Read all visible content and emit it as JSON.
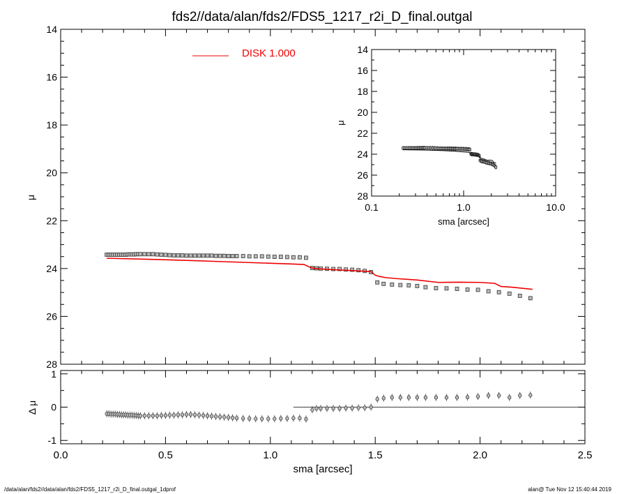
{
  "chart_data": {
    "type": "scatter",
    "title": "fds2//data/alan/fds2/FDS5_1217_r2i_D_final.outgal",
    "legend": {
      "label": "DISK  1.000",
      "color": "#ee0000",
      "placement": "top-left"
    },
    "main": {
      "ylabel": "μ",
      "ylim": [
        28,
        14
      ],
      "yticks": [
        "14",
        "16",
        "18",
        "20",
        "22",
        "24",
        "26",
        "28"
      ],
      "xlim": [
        0.0,
        2.5
      ],
      "data_points": {
        "x": [
          0.22,
          0.23,
          0.24,
          0.25,
          0.26,
          0.27,
          0.28,
          0.29,
          0.3,
          0.31,
          0.32,
          0.33,
          0.34,
          0.35,
          0.36,
          0.37,
          0.38,
          0.4,
          0.42,
          0.44,
          0.46,
          0.48,
          0.5,
          0.52,
          0.54,
          0.56,
          0.58,
          0.6,
          0.62,
          0.64,
          0.66,
          0.68,
          0.7,
          0.72,
          0.74,
          0.76,
          0.78,
          0.8,
          0.82,
          0.84,
          0.87,
          0.9,
          0.93,
          0.96,
          0.99,
          1.02,
          1.05,
          1.08,
          1.11,
          1.14,
          1.17,
          1.2,
          1.22,
          1.24,
          1.27,
          1.3,
          1.33,
          1.36,
          1.39,
          1.42,
          1.45,
          1.48,
          1.51,
          1.54,
          1.58,
          1.62,
          1.66,
          1.7,
          1.74,
          1.79,
          1.84,
          1.89,
          1.94,
          1.99,
          2.04,
          2.09,
          2.14,
          2.19,
          2.24
        ],
        "y": [
          23.42,
          23.42,
          23.42,
          23.42,
          23.42,
          23.42,
          23.42,
          23.42,
          23.42,
          23.42,
          23.41,
          23.41,
          23.41,
          23.41,
          23.4,
          23.4,
          23.4,
          23.4,
          23.4,
          23.4,
          23.41,
          23.42,
          23.43,
          23.44,
          23.45,
          23.45,
          23.45,
          23.46,
          23.46,
          23.46,
          23.46,
          23.46,
          23.46,
          23.46,
          23.47,
          23.47,
          23.47,
          23.48,
          23.48,
          23.48,
          23.48,
          23.49,
          23.49,
          23.49,
          23.5,
          23.51,
          23.51,
          23.52,
          23.53,
          23.53,
          23.55,
          23.98,
          23.99,
          24.0,
          24.01,
          24.02,
          24.02,
          24.04,
          24.05,
          24.07,
          24.1,
          24.15,
          24.58,
          24.64,
          24.67,
          24.69,
          24.7,
          24.73,
          24.78,
          24.82,
          24.83,
          24.85,
          24.88,
          24.89,
          24.95,
          24.99,
          25.05,
          25.14,
          25.24
        ]
      },
      "disk_model": {
        "x": [
          0.22,
          0.4,
          0.6,
          0.8,
          1.0,
          1.1,
          1.16,
          1.19,
          1.21,
          1.3,
          1.4,
          1.48,
          1.5,
          1.52,
          1.55,
          1.6,
          1.7,
          1.8,
          1.9,
          2.0,
          2.07,
          2.1,
          2.15,
          2.25
        ],
        "y": [
          23.57,
          23.61,
          23.66,
          23.72,
          23.78,
          23.81,
          23.83,
          23.95,
          24.0,
          24.05,
          24.09,
          24.13,
          24.28,
          24.33,
          24.38,
          24.42,
          24.48,
          24.58,
          24.57,
          24.58,
          24.62,
          24.75,
          24.78,
          24.87
        ]
      }
    },
    "residuals": {
      "ylabel": "Δ μ",
      "ylim": [
        -1.1,
        1.1
      ],
      "yticks": [
        "1",
        "0",
        "-1"
      ],
      "zero_line_xrange": [
        1.11,
        2.5
      ],
      "y": [
        -0.2,
        -0.2,
        -0.21,
        -0.21,
        -0.21,
        -0.22,
        -0.22,
        -0.23,
        -0.23,
        -0.23,
        -0.24,
        -0.24,
        -0.24,
        -0.25,
        -0.25,
        -0.26,
        -0.26,
        -0.26,
        -0.26,
        -0.26,
        -0.26,
        -0.25,
        -0.25,
        -0.24,
        -0.24,
        -0.23,
        -0.23,
        -0.22,
        -0.22,
        -0.23,
        -0.24,
        -0.25,
        -0.26,
        -0.27,
        -0.28,
        -0.29,
        -0.3,
        -0.31,
        -0.32,
        -0.33,
        -0.34,
        -0.34,
        -0.35,
        -0.35,
        -0.35,
        -0.35,
        -0.34,
        -0.34,
        -0.33,
        -0.33,
        -0.36,
        -0.08,
        -0.04,
        -0.04,
        -0.04,
        -0.04,
        -0.04,
        -0.03,
        -0.03,
        -0.02,
        -0.02,
        0.0,
        0.24,
        0.27,
        0.29,
        0.29,
        0.29,
        0.29,
        0.29,
        0.29,
        0.29,
        0.29,
        0.3,
        0.32,
        0.35,
        0.35,
        0.29,
        0.35,
        0.36
      ]
    },
    "xlabel": "sma [arcsec]",
    "xticks": [
      "0.0",
      "0.5",
      "1.0",
      "1.5",
      "2.0",
      "2.5"
    ],
    "inset": {
      "xlabel": "sma [arcsec]",
      "ylabel": "μ",
      "xscale": "log",
      "xlim": [
        0.1,
        10.0
      ],
      "xticks": [
        "0.1",
        "1.0",
        "10.0"
      ],
      "ylim": [
        28,
        14
      ],
      "yticks": [
        "14",
        "16",
        "18",
        "20",
        "22",
        "24",
        "26",
        "28"
      ]
    }
  },
  "footer": {
    "left": "/data/alan/fds2//data/alan/fds2/FDS5_1217_r2i_D_final.outgal_1dprof",
    "right": "alan@  Tue Nov 12 15:40:44 2019"
  }
}
